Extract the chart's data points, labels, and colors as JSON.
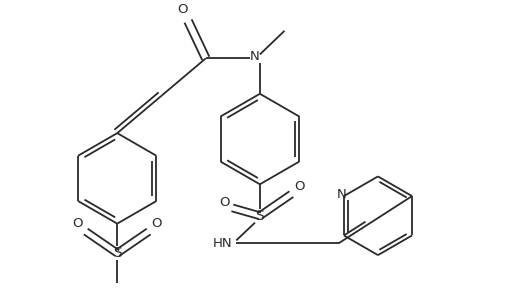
{
  "bg_color": "#ffffff",
  "line_color": "#2a2a2a",
  "line_width": 1.3,
  "figsize": [
    5.06,
    2.88
  ],
  "dpi": 100,
  "xlim": [
    0,
    506
  ],
  "ylim": [
    0,
    288
  ]
}
